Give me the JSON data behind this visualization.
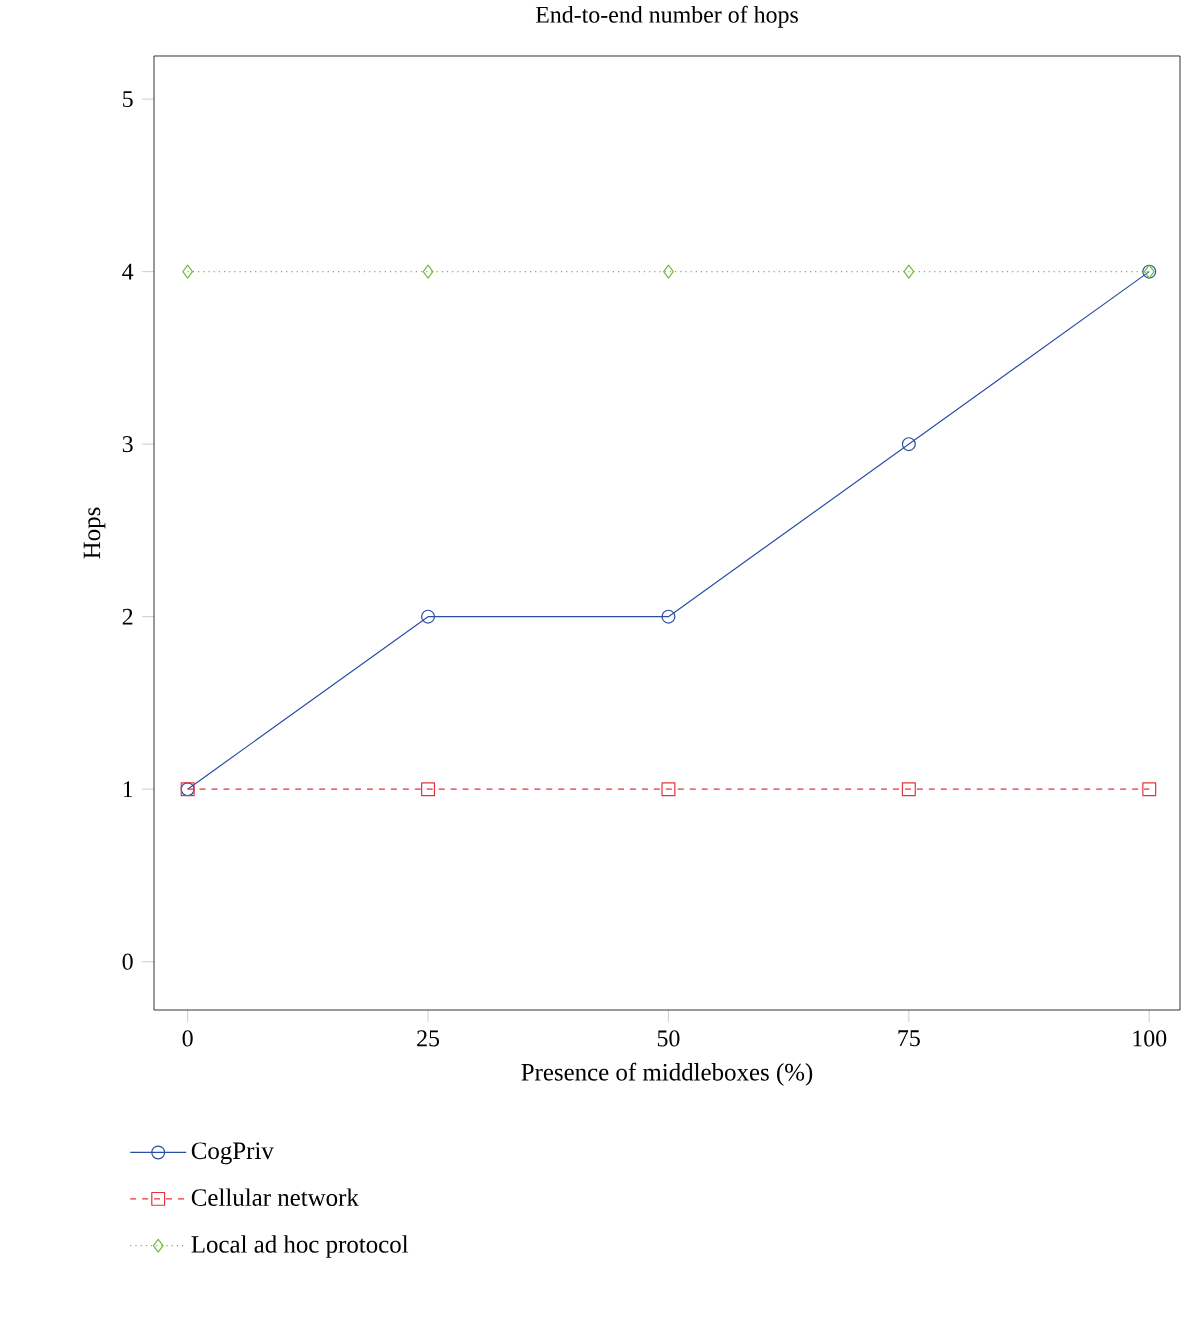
{
  "chart_data": {
    "type": "line",
    "title": "End-to-end number of hops",
    "xlabel": "Presence of middleboxes (%)",
    "ylabel": "Hops",
    "x": [
      0,
      25,
      50,
      75,
      100
    ],
    "series": [
      {
        "name": "CogPriv",
        "color": "#2b4ea2",
        "marker": "circle",
        "line_style": "solid",
        "values": [
          1,
          2,
          2,
          3,
          4
        ]
      },
      {
        "name": "Cellular network",
        "color": "#e5333b",
        "marker": "square",
        "line_style": "dashed",
        "values": [
          1,
          1,
          1,
          1,
          1
        ]
      },
      {
        "name": "Local ad hoc protocol",
        "color": "#6bbf3a",
        "marker": "diamond",
        "line_style": "dotted",
        "values": [
          4,
          4,
          4,
          4,
          4
        ]
      }
    ],
    "xlim": [
      -3.5,
      103.2
    ],
    "ylim": [
      -0.28,
      5.25
    ],
    "xticks": [
      0,
      25,
      50,
      75,
      100
    ],
    "yticks": [
      0,
      1,
      2,
      3,
      4,
      5
    ],
    "grid": false,
    "legend": "bottom left"
  }
}
